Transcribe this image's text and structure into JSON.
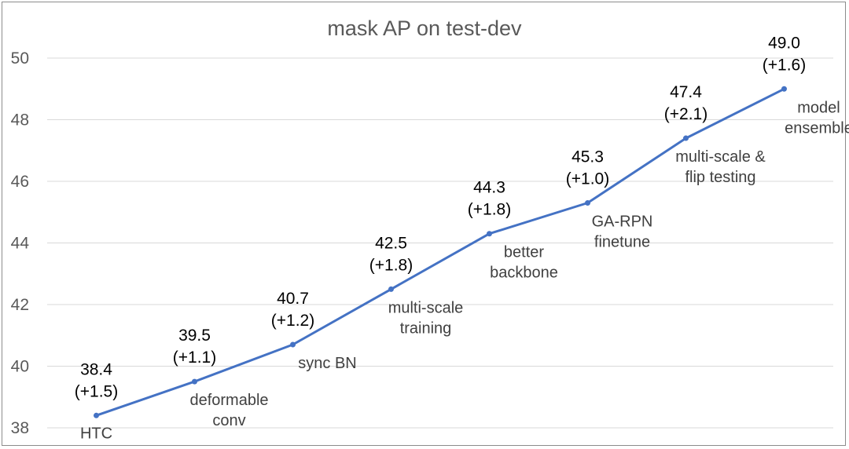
{
  "chart_data": {
    "type": "line",
    "title": "mask AP on test-dev",
    "xlabel": "",
    "ylabel": "",
    "ylim": [
      38,
      50
    ],
    "yticks": [
      38,
      40,
      42,
      44,
      46,
      48,
      50
    ],
    "grid": true,
    "series": [
      {
        "name": "mask AP",
        "color": "#4472c4",
        "points": [
          {
            "category": [
              "HTC"
            ],
            "value": 38.4,
            "label": "38.4",
            "delta": "(+1.5)"
          },
          {
            "category": [
              "deformable",
              "conv"
            ],
            "value": 39.5,
            "label": "39.5",
            "delta": "(+1.1)"
          },
          {
            "category": [
              "sync BN"
            ],
            "value": 40.7,
            "label": "40.7",
            "delta": "(+1.2)"
          },
          {
            "category": [
              "multi-scale",
              "training"
            ],
            "value": 42.5,
            "label": "42.5",
            "delta": "(+1.8)"
          },
          {
            "category": [
              "better",
              "backbone"
            ],
            "value": 44.3,
            "label": "44.3",
            "delta": "(+1.8)"
          },
          {
            "category": [
              "GA-RPN",
              "finetune"
            ],
            "value": 45.3,
            "label": "45.3",
            "delta": "(+1.0)"
          },
          {
            "category": [
              "multi-scale &",
              "flip testing"
            ],
            "value": 47.4,
            "label": "47.4",
            "delta": "(+2.1)"
          },
          {
            "category": [
              "model",
              "ensemble"
            ],
            "value": 49.0,
            "label": "49.0",
            "delta": "(+1.6)"
          }
        ]
      }
    ]
  }
}
